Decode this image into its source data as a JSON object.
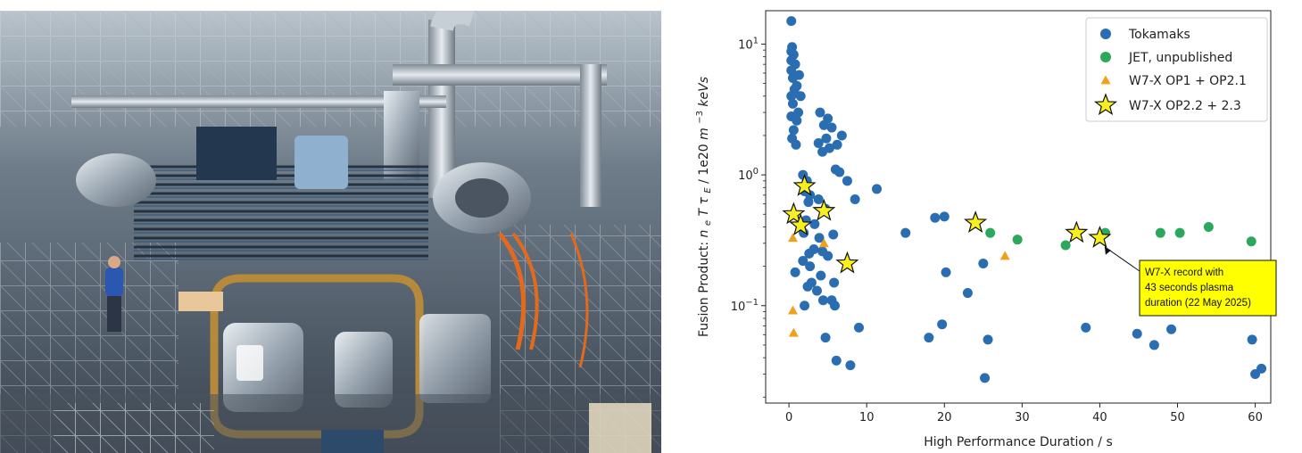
{
  "photo": {
    "icon": "stellarator-photo"
  },
  "chart_data": {
    "type": "scatter",
    "title": "",
    "xlabel": "High Performance Duration / s",
    "ylabel": "Fusion Product:  n_e T τ_E  /  1e20 m^-3 keVs",
    "ylabel_parts": {
      "prefix": "Fusion Product:  ",
      "ne": "n",
      "ne_sub": "e",
      "t": "T",
      "tau": "τ",
      "tau_sub": "E",
      "mid": " / 1e20 ",
      "m": "m",
      "exp": "−3",
      "unit": "keVs"
    },
    "xlim": [
      -3,
      62
    ],
    "ylim": [
      0.018,
      18
    ],
    "yscale": "log",
    "x_ticks": [
      0,
      10,
      20,
      30,
      40,
      50,
      60
    ],
    "x_tick_labels": [
      "0",
      "10",
      "20",
      "30",
      "40",
      "50",
      "60"
    ],
    "y_ticks": [
      0.1,
      1,
      10
    ],
    "y_tick_labels": [
      {
        "base": "10",
        "exp": "−1"
      },
      {
        "base": "10",
        "exp": "0"
      },
      {
        "base": "10",
        "exp": "1"
      }
    ],
    "legend_position": "top-right",
    "series": [
      {
        "name": "Tokamaks",
        "marker": "circle",
        "color": "#2a6db1",
        "points": [
          [
            0.3,
            15.0
          ],
          [
            0.4,
            9.5
          ],
          [
            0.3,
            8.8
          ],
          [
            0.6,
            8.3
          ],
          [
            0.3,
            7.5
          ],
          [
            0.8,
            7.0
          ],
          [
            0.3,
            6.3
          ],
          [
            0.5,
            5.5
          ],
          [
            1.3,
            5.8
          ],
          [
            1.0,
            4.8
          ],
          [
            0.7,
            4.5
          ],
          [
            0.3,
            4.0
          ],
          [
            0.5,
            3.5
          ],
          [
            1.5,
            4.0
          ],
          [
            1.2,
            3.0
          ],
          [
            0.3,
            2.8
          ],
          [
            1.0,
            2.6
          ],
          [
            0.6,
            2.2
          ],
          [
            0.4,
            1.9
          ],
          [
            0.9,
            1.7
          ],
          [
            4.0,
            3.0
          ],
          [
            5.0,
            2.7
          ],
          [
            4.5,
            2.4
          ],
          [
            5.5,
            2.3
          ],
          [
            4.8,
            1.9
          ],
          [
            5.2,
            1.6
          ],
          [
            3.8,
            1.75
          ],
          [
            6.2,
            1.7
          ],
          [
            6.8,
            2.0
          ],
          [
            4.3,
            1.5
          ],
          [
            6.0,
            1.1
          ],
          [
            6.5,
            1.05
          ],
          [
            7.5,
            0.9
          ],
          [
            1.8,
            1.0
          ],
          [
            2.3,
            0.9
          ],
          [
            2.0,
            0.75
          ],
          [
            11.3,
            0.78
          ],
          [
            8.5,
            0.65
          ],
          [
            2.7,
            0.7
          ],
          [
            3.8,
            0.65
          ],
          [
            2.5,
            0.62
          ],
          [
            4.7,
            0.55
          ],
          [
            2.2,
            0.45
          ],
          [
            3.3,
            0.42
          ],
          [
            1.9,
            0.36
          ],
          [
            5.7,
            0.35
          ],
          [
            3.9,
            0.33
          ],
          [
            15.0,
            0.36
          ],
          [
            18.8,
            0.47
          ],
          [
            20.0,
            0.48
          ],
          [
            3.2,
            0.27
          ],
          [
            2.6,
            0.25
          ],
          [
            4.3,
            0.26
          ],
          [
            5.0,
            0.24
          ],
          [
            1.8,
            0.22
          ],
          [
            0.8,
            0.18
          ],
          [
            2.7,
            0.2
          ],
          [
            4.1,
            0.17
          ],
          [
            2.9,
            0.15
          ],
          [
            5.8,
            0.15
          ],
          [
            2.4,
            0.14
          ],
          [
            3.6,
            0.13
          ],
          [
            2.0,
            0.1
          ],
          [
            4.4,
            0.11
          ],
          [
            5.5,
            0.11
          ],
          [
            5.9,
            0.1
          ],
          [
            9.0,
            0.068
          ],
          [
            4.7,
            0.057
          ],
          [
            6.1,
            0.038
          ],
          [
            7.9,
            0.035
          ],
          [
            20.2,
            0.18
          ],
          [
            23.0,
            0.125
          ],
          [
            25.0,
            0.21
          ],
          [
            19.7,
            0.072
          ],
          [
            18.0,
            0.057
          ],
          [
            25.6,
            0.055
          ],
          [
            25.2,
            0.028
          ],
          [
            38.2,
            0.068
          ],
          [
            44.8,
            0.061
          ],
          [
            47.0,
            0.05
          ],
          [
            49.2,
            0.066
          ],
          [
            59.6,
            0.055
          ],
          [
            60.0,
            0.03
          ],
          [
            60.8,
            0.033
          ]
        ]
      },
      {
        "name": "JET, unpublished",
        "marker": "circle",
        "color": "#2ca85c",
        "points": [
          [
            25.9,
            0.36
          ],
          [
            29.4,
            0.32
          ],
          [
            35.6,
            0.29
          ],
          [
            40.7,
            0.36
          ],
          [
            47.8,
            0.36
          ],
          [
            50.3,
            0.36
          ],
          [
            54.0,
            0.4
          ],
          [
            59.5,
            0.31
          ]
        ]
      },
      {
        "name": "W7-X OP1 + OP2.1",
        "marker": "triangle",
        "color": "#f0a11c",
        "points": [
          [
            0.5,
            0.33
          ],
          [
            4.5,
            0.3
          ],
          [
            27.8,
            0.24
          ],
          [
            0.5,
            0.092
          ],
          [
            0.6,
            0.062
          ]
        ]
      },
      {
        "name": "W7-X OP2.2 + 2.3",
        "marker": "star",
        "color": "#f7ef1e",
        "points": [
          [
            2.0,
            0.82
          ],
          [
            0.6,
            0.5
          ],
          [
            4.5,
            0.53
          ],
          [
            1.5,
            0.41
          ],
          [
            7.5,
            0.21
          ],
          [
            24.0,
            0.43
          ],
          [
            37.0,
            0.36
          ],
          [
            40.0,
            0.33
          ]
        ]
      }
    ],
    "annotation": {
      "lines": [
        "W7-X record with",
        "43 seconds plasma",
        "duration (22 May 2025)"
      ],
      "target": [
        40.4,
        0.3
      ],
      "box_fill": "#ffff00"
    }
  }
}
